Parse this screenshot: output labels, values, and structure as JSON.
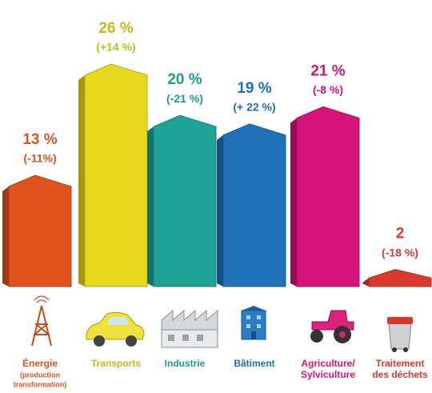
{
  "chart_data": {
    "type": "bar",
    "categories": [
      "Énergie",
      "Transports",
      "Industrie",
      "Bâtiment",
      "Agriculture/",
      "Traitement"
    ],
    "category_second_lines": [
      null,
      null,
      null,
      null,
      "Sylviculture",
      "des déchets"
    ],
    "energy_note": [
      "(production",
      "transformation)"
    ],
    "values": [
      13,
      26,
      20,
      19,
      21,
      2
    ],
    "value_labels": [
      "13 %",
      "26 %",
      "20 %",
      "19 %",
      "21 %",
      "2"
    ],
    "changes": [
      -11,
      14,
      -21,
      22,
      -8,
      -18
    ],
    "change_labels": [
      "(-11%)",
      "(+14 %)",
      "(-21 %)",
      "(+ 22 %)",
      "(-8 %)",
      "(-18 %)"
    ],
    "colors": [
      "#e0531f",
      "#e6d81c",
      "#1fa396",
      "#1f72b8",
      "#d6137a",
      "#d93a2e"
    ],
    "label_colors": [
      "#e0531f",
      "#c9b81a",
      "#1f9a8e",
      "#1f6fb5",
      "#d6137a",
      "#d93a2e"
    ]
  }
}
